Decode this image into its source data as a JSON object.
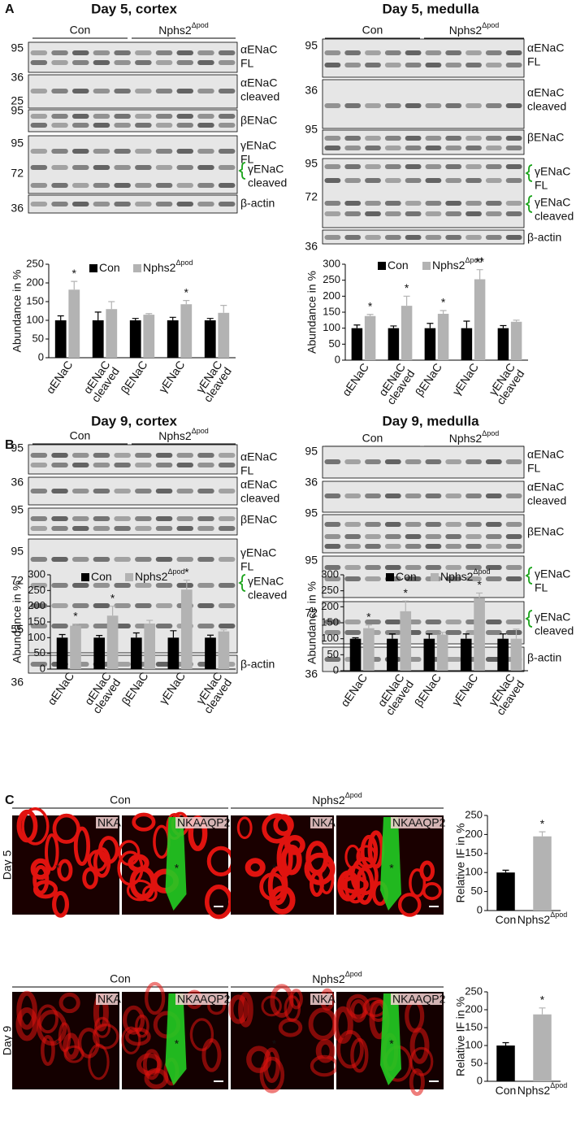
{
  "panel_labels": [
    "A",
    "B",
    "C"
  ],
  "blots": [
    {
      "title": "Day 5, cortex",
      "groups": [
        "Con",
        "Nphs2"
      ],
      "group_sup": "Δpod",
      "rows": [
        {
          "markers": [
            "95"
          ],
          "labels": [
            [
              "αENaC",
              "FL"
            ]
          ]
        },
        {
          "markers": [
            "36",
            "25"
          ],
          "labels": [
            [
              "αENaC",
              "cleaved"
            ]
          ]
        },
        {
          "markers": [
            "95"
          ],
          "labels": [
            [
              "βENaC"
            ]
          ]
        },
        {
          "markers": [
            "95",
            "72"
          ],
          "labels": [
            [
              "γENaC",
              "FL"
            ],
            [
              "γENaC",
              "cleaved"
            ]
          ]
        },
        {
          "markers": [
            "36"
          ],
          "labels": [
            [
              "β-actin"
            ]
          ]
        }
      ]
    },
    {
      "title": "Day 5, medulla",
      "groups": [
        "Con",
        "Nphs2"
      ],
      "group_sup": "Δpod",
      "rows": [
        {
          "markers": [
            "95"
          ],
          "labels": [
            [
              "αENaC",
              "FL"
            ]
          ]
        },
        {
          "markers": [
            "36"
          ],
          "labels": [
            [
              "αENaC",
              "cleaved"
            ]
          ]
        },
        {
          "markers": [
            "95"
          ],
          "labels": [
            [
              "βENaC"
            ]
          ]
        },
        {
          "markers": [
            "95",
            "72"
          ],
          "labels": [
            [
              "γENaC",
              "FL"
            ],
            [
              "γENaC",
              "cleaved"
            ]
          ]
        },
        {
          "markers": [
            "36"
          ],
          "labels": [
            [
              "β-actin"
            ]
          ]
        }
      ]
    },
    {
      "title": "Day 9, cortex",
      "groups": [
        "Con",
        "Nphs2"
      ],
      "group_sup": "Δpod",
      "rows": [
        {
          "markers": [
            "95"
          ],
          "labels": [
            [
              "αENaC",
              "FL"
            ]
          ]
        },
        {
          "markers": [
            "36"
          ],
          "labels": [
            [
              "αENaC",
              "cleaved"
            ]
          ]
        },
        {
          "markers": [
            "95"
          ],
          "labels": [
            [
              "βENaC"
            ]
          ]
        },
        {
          "markers": [
            "95",
            "72",
            "55"
          ],
          "labels": [
            [
              "γENaC",
              "FL"
            ],
            [
              "γENaC",
              "cleaved"
            ]
          ]
        },
        {
          "markers": [
            "36"
          ],
          "labels": [
            [
              "β-actin"
            ]
          ]
        }
      ]
    },
    {
      "title": "Day 9, medulla",
      "groups": [
        "Con",
        "Nphs2"
      ],
      "group_sup": "Δpod",
      "rows": [
        {
          "markers": [
            "95"
          ],
          "labels": [
            [
              "αENaC",
              "FL"
            ]
          ]
        },
        {
          "markers": [
            "36"
          ],
          "labels": [
            [
              "αENaC",
              "cleaved"
            ]
          ]
        },
        {
          "markers": [
            "95"
          ],
          "labels": [
            [
              "βENaC"
            ]
          ]
        },
        {
          "markers": [
            "95"
          ],
          "labels": [
            [
              "γENaC",
              "FL"
            ]
          ]
        },
        {
          "markers": [
            "72"
          ],
          "labels": [
            [
              "γENaC",
              "cleaved"
            ]
          ]
        },
        {
          "markers": [
            "36"
          ],
          "labels": [
            [
              "β-actin"
            ]
          ]
        }
      ]
    }
  ],
  "panel_c": {
    "groups": [
      "Con",
      "Nphs2"
    ],
    "group_sup": "Δpod",
    "rows": [
      "Day 5",
      "Day 9"
    ],
    "stains": [
      "NKA",
      "AQP2"
    ],
    "marker": "*"
  },
  "chart_data": [
    {
      "type": "bar",
      "ylabel": "Abundance in %",
      "categories": [
        [
          "αENaC"
        ],
        [
          "αENaC",
          "cleaved"
        ],
        [
          "βENaC"
        ],
        [
          "γENaC"
        ],
        [
          "γENaC",
          "cleaved"
        ]
      ],
      "series": [
        {
          "name": "Con",
          "color": "#000000",
          "values": [
            100,
            100,
            100,
            100,
            100
          ],
          "errors": [
            12,
            22,
            5,
            8,
            5
          ]
        },
        {
          "name": "Nphs2",
          "name_sup": "Δpod",
          "color": "#b3b3b3",
          "values": [
            182,
            130,
            115,
            143,
            120
          ],
          "errors": [
            22,
            20,
            3,
            10,
            20
          ],
          "annotations": [
            "*",
            null,
            null,
            "*",
            null
          ]
        }
      ],
      "ylim": [
        0,
        250
      ],
      "yticks": [
        0,
        50,
        100,
        150,
        200,
        250
      ],
      "legend": true,
      "grid": false
    },
    {
      "type": "bar",
      "ylabel": "Abundance in %",
      "categories": [
        [
          "αENaC"
        ],
        [
          "αENaC",
          "cleaved"
        ],
        [
          "βENaC"
        ],
        [
          "γENaC"
        ],
        [
          "γENaC",
          "cleaved"
        ]
      ],
      "series": [
        {
          "name": "Con",
          "color": "#000000",
          "values": [
            100,
            100,
            100,
            100,
            100
          ],
          "errors": [
            10,
            7,
            15,
            22,
            8
          ]
        },
        {
          "name": "Nphs2",
          "name_sup": "Δpod",
          "color": "#b3b3b3",
          "values": [
            138,
            170,
            145,
            253,
            120
          ],
          "errors": [
            5,
            30,
            10,
            30,
            5
          ],
          "annotations": [
            "*",
            "*",
            "*",
            "**",
            null
          ]
        }
      ],
      "ylim": [
        0,
        300
      ],
      "yticks": [
        0,
        50,
        100,
        150,
        200,
        250,
        300
      ],
      "legend": true,
      "grid": false
    },
    {
      "type": "bar",
      "ylabel": "Abundance in %",
      "categories": [
        [
          "αENaC"
        ],
        [
          "αENaC",
          "cleaved"
        ],
        [
          "βENaC"
        ],
        [
          "γENaC"
        ],
        [
          "γENaC",
          "cleaved"
        ]
      ],
      "series": [
        {
          "name": "Con",
          "color": "#000000",
          "values": [
            100,
            100,
            100,
            100,
            100
          ],
          "errors": [
            10,
            7,
            15,
            22,
            8
          ]
        },
        {
          "name": "Nphs2",
          "name_sup": "Δpod",
          "color": "#b3b3b3",
          "values": [
            138,
            170,
            145,
            253,
            120
          ],
          "errors": [
            5,
            30,
            10,
            30,
            5
          ],
          "annotations": [
            "*",
            "*",
            null,
            "*",
            null
          ]
        }
      ],
      "ylim": [
        0,
        300
      ],
      "yticks": [
        0,
        50,
        100,
        150,
        200,
        250,
        300
      ],
      "legend": true,
      "grid": false
    },
    {
      "type": "bar",
      "ylabel": "Abundance in %",
      "categories": [
        [
          "αENaC"
        ],
        [
          "αENaC",
          "cleaved"
        ],
        [
          "βENaC"
        ],
        [
          "γENaC"
        ],
        [
          "γENaC",
          "cleaved"
        ]
      ],
      "series": [
        {
          "name": "Con",
          "color": "#000000",
          "values": [
            100,
            100,
            100,
            100,
            100
          ],
          "errors": [
            3,
            15,
            15,
            15,
            15
          ]
        },
        {
          "name": "Nphs2",
          "name_sup": "Δpod",
          "color": "#b3b3b3",
          "values": [
            133,
            186,
            113,
            228,
            100
          ],
          "errors": [
            10,
            32,
            7,
            15,
            30
          ],
          "annotations": [
            "*",
            "*",
            null,
            "*",
            null
          ]
        }
      ],
      "ylim": [
        0,
        300
      ],
      "yticks": [
        0,
        50,
        100,
        150,
        200,
        250,
        300
      ],
      "legend": true,
      "grid": false
    },
    {
      "type": "bar",
      "ylabel": "Relative IF in %",
      "categories": [
        "Con",
        "Nphs2"
      ],
      "categories_sup": [
        null,
        "Δpod"
      ],
      "values": [
        100,
        195
      ],
      "errors": [
        6,
        12
      ],
      "colors": [
        "#000000",
        "#b3b3b3"
      ],
      "annotations": [
        null,
        "*"
      ],
      "ylim": [
        0,
        250
      ],
      "yticks": [
        0,
        50,
        100,
        150,
        200,
        250
      ],
      "legend": false,
      "grid": false
    },
    {
      "type": "bar",
      "ylabel": "Relative IF in %",
      "categories": [
        "Con",
        "Nphs2"
      ],
      "categories_sup": [
        null,
        "Δpod"
      ],
      "values": [
        100,
        187
      ],
      "errors": [
        8,
        18
      ],
      "colors": [
        "#000000",
        "#b3b3b3"
      ],
      "annotations": [
        null,
        "*"
      ],
      "ylim": [
        0,
        250
      ],
      "yticks": [
        0,
        50,
        100,
        150,
        200,
        250
      ],
      "legend": false,
      "grid": false
    }
  ]
}
